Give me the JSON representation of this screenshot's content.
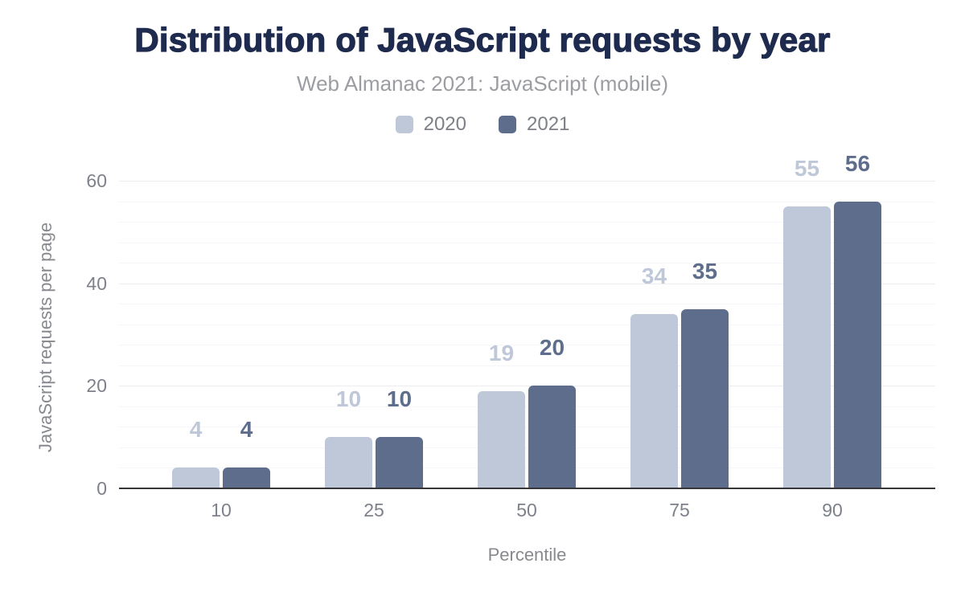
{
  "chart_data": {
    "type": "bar",
    "title": "Distribution of JavaScript requests by year",
    "subtitle": "Web Almanac 2021: JavaScript (mobile)",
    "xlabel": "Percentile",
    "ylabel": "JavaScript requests per page",
    "categories": [
      "10",
      "25",
      "50",
      "75",
      "90"
    ],
    "series": [
      {
        "name": "2020",
        "values": [
          4,
          10,
          19,
          34,
          55
        ],
        "color": "#bfc8d8"
      },
      {
        "name": "2021",
        "values": [
          4,
          10,
          20,
          35,
          56
        ],
        "color": "#5d6d8b"
      }
    ],
    "ylim": [
      0,
      60
    ],
    "yticks": [
      "0",
      "20",
      "40",
      "60"
    ],
    "minor_grid_step": 4,
    "grid": true,
    "legend_position": "top",
    "data_labels": true
  },
  "palette": {
    "title_color": "#1e2b4e",
    "subtitle_color": "#9b9da3",
    "tick_color": "#7d818a",
    "axis_title_color": "#87898f",
    "axis_line_color": "#36363b",
    "minor_grid_color": "#f6f6f8",
    "major_grid_color": "#ececef",
    "background": "#ffffff"
  }
}
